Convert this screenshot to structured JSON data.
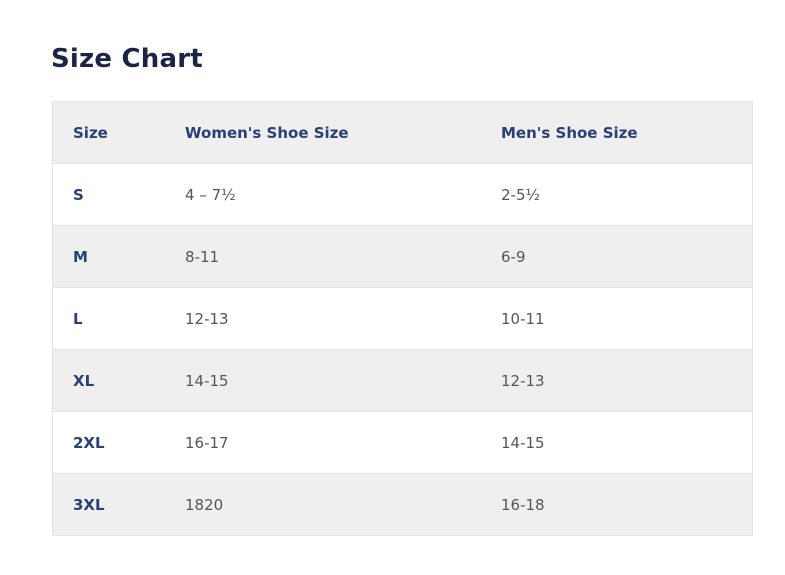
{
  "title": "Size Chart",
  "table": {
    "headers": [
      "Size",
      "Women's Shoe Size",
      "Men's Shoe Size"
    ],
    "rows": [
      {
        "size": "S",
        "women": "4 – 7½",
        "men": "2-5½"
      },
      {
        "size": "M",
        "women": "8-11",
        "men": "6-9"
      },
      {
        "size": "L",
        "women": "12-13",
        "men": "10-11"
      },
      {
        "size": "XL",
        "women": "14-15",
        "men": "12-13"
      },
      {
        "size": "2XL",
        "women": "16-17",
        "men": "14-15"
      },
      {
        "size": "3XL",
        "women": "1820",
        "men": "16-18"
      }
    ]
  },
  "colors": {
    "title": "#1b2444",
    "header_text": "#2a3f73",
    "shaded_row": "#efefef",
    "body_text": "#555555"
  }
}
